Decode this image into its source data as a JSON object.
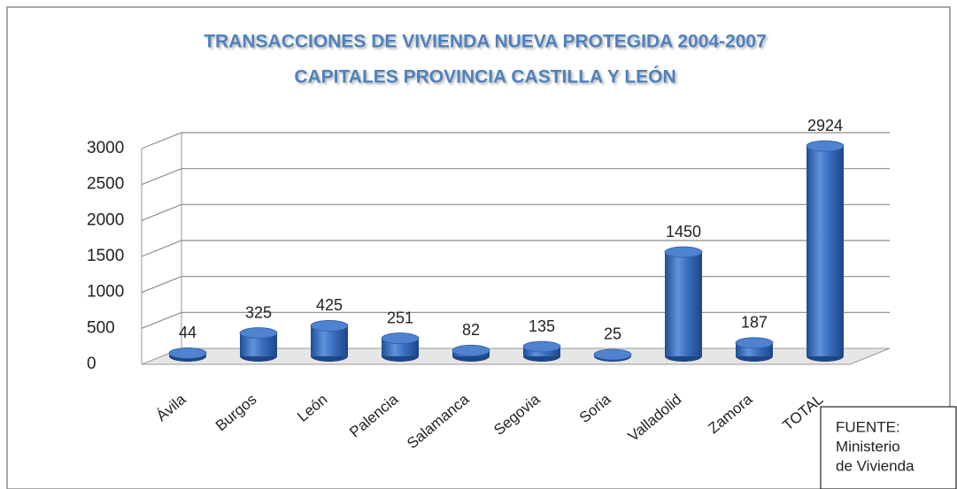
{
  "chart_data": {
    "type": "bar",
    "title": "TRANSACCIONES DE VIVIENDA NUEVA PROTEGIDA 2004-2007",
    "subtitle": "CAPITALES PROVINCIA CASTILLA Y LEÓN",
    "categories": [
      "Ávila",
      "Burgos",
      "León",
      "Palencia",
      "Salamanca",
      "Segovia",
      "Soria",
      "Valladolid",
      "Zamora",
      "TOTAL"
    ],
    "values": [
      44,
      325,
      425,
      251,
      82,
      135,
      25,
      1450,
      187,
      2924
    ],
    "color": "#3a6fc0",
    "ylim": [
      0,
      3000
    ],
    "yticks": [
      0,
      500,
      1000,
      1500,
      2000,
      2500,
      3000
    ],
    "grid": true,
    "annotation": [
      "FUENTE:",
      "Ministerio",
      "de Vivienda"
    ]
  }
}
